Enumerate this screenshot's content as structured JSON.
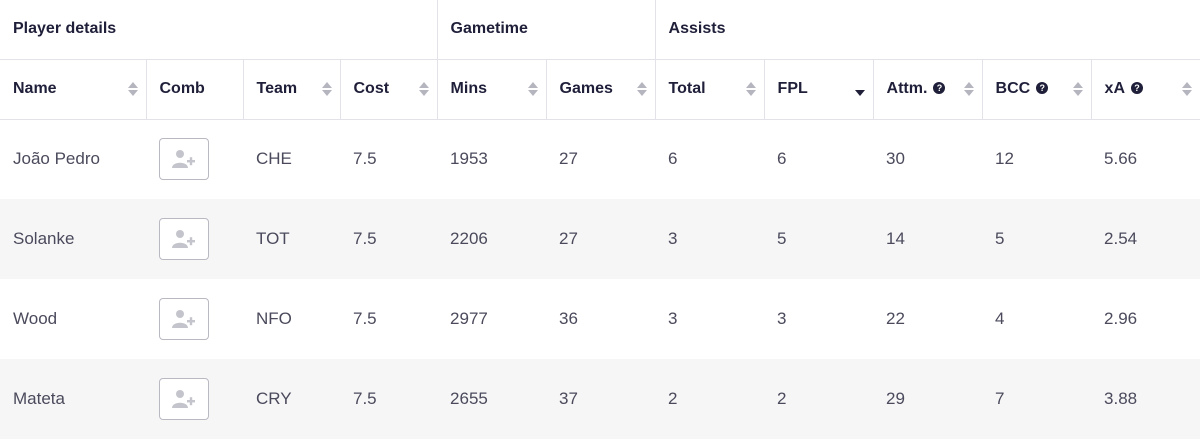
{
  "group_headers": [
    "Player details",
    "Gametime",
    "Assists"
  ],
  "columns": [
    {
      "label": "Name",
      "help": false,
      "sort": "none"
    },
    {
      "label": "Comb",
      "help": false,
      "sort": "nosort"
    },
    {
      "label": "Team",
      "help": false,
      "sort": "none"
    },
    {
      "label": "Cost",
      "help": false,
      "sort": "none"
    },
    {
      "label": "Mins",
      "help": false,
      "sort": "none"
    },
    {
      "label": "Games",
      "help": false,
      "sort": "none"
    },
    {
      "label": "Total",
      "help": false,
      "sort": "none"
    },
    {
      "label": "FPL",
      "help": false,
      "sort": "desc"
    },
    {
      "label": "Attm.",
      "help": true,
      "sort": "none"
    },
    {
      "label": "BCC",
      "help": true,
      "sort": "none"
    },
    {
      "label": "xA",
      "help": true,
      "sort": "none"
    }
  ],
  "rows": [
    {
      "name": "João Pedro",
      "team": "CHE",
      "cost": "7.5",
      "mins": "1953",
      "games": "27",
      "total": "6",
      "fpl": "6",
      "attm": "30",
      "bcc": "12",
      "xa": "5.66"
    },
    {
      "name": "Solanke",
      "team": "TOT",
      "cost": "7.5",
      "mins": "2206",
      "games": "27",
      "total": "3",
      "fpl": "5",
      "attm": "14",
      "bcc": "5",
      "xa": "2.54"
    },
    {
      "name": "Wood",
      "team": "NFO",
      "cost": "7.5",
      "mins": "2977",
      "games": "36",
      "total": "3",
      "fpl": "3",
      "attm": "22",
      "bcc": "4",
      "xa": "2.96"
    },
    {
      "name": "Mateta",
      "team": "CRY",
      "cost": "7.5",
      "mins": "2655",
      "games": "37",
      "total": "2",
      "fpl": "2",
      "attm": "29",
      "bcc": "7",
      "xa": "3.88"
    }
  ],
  "icons": {
    "comb": "add-user-icon",
    "help": "question-circle-icon",
    "sort": "sort-arrows-icon"
  },
  "colors": {
    "text": "#1f1f3a",
    "muted_text": "#4a4a5c",
    "stripe": "#f6f6f7",
    "border": "#e2e2e8",
    "sort_inactive": "#b5b5bf"
  }
}
